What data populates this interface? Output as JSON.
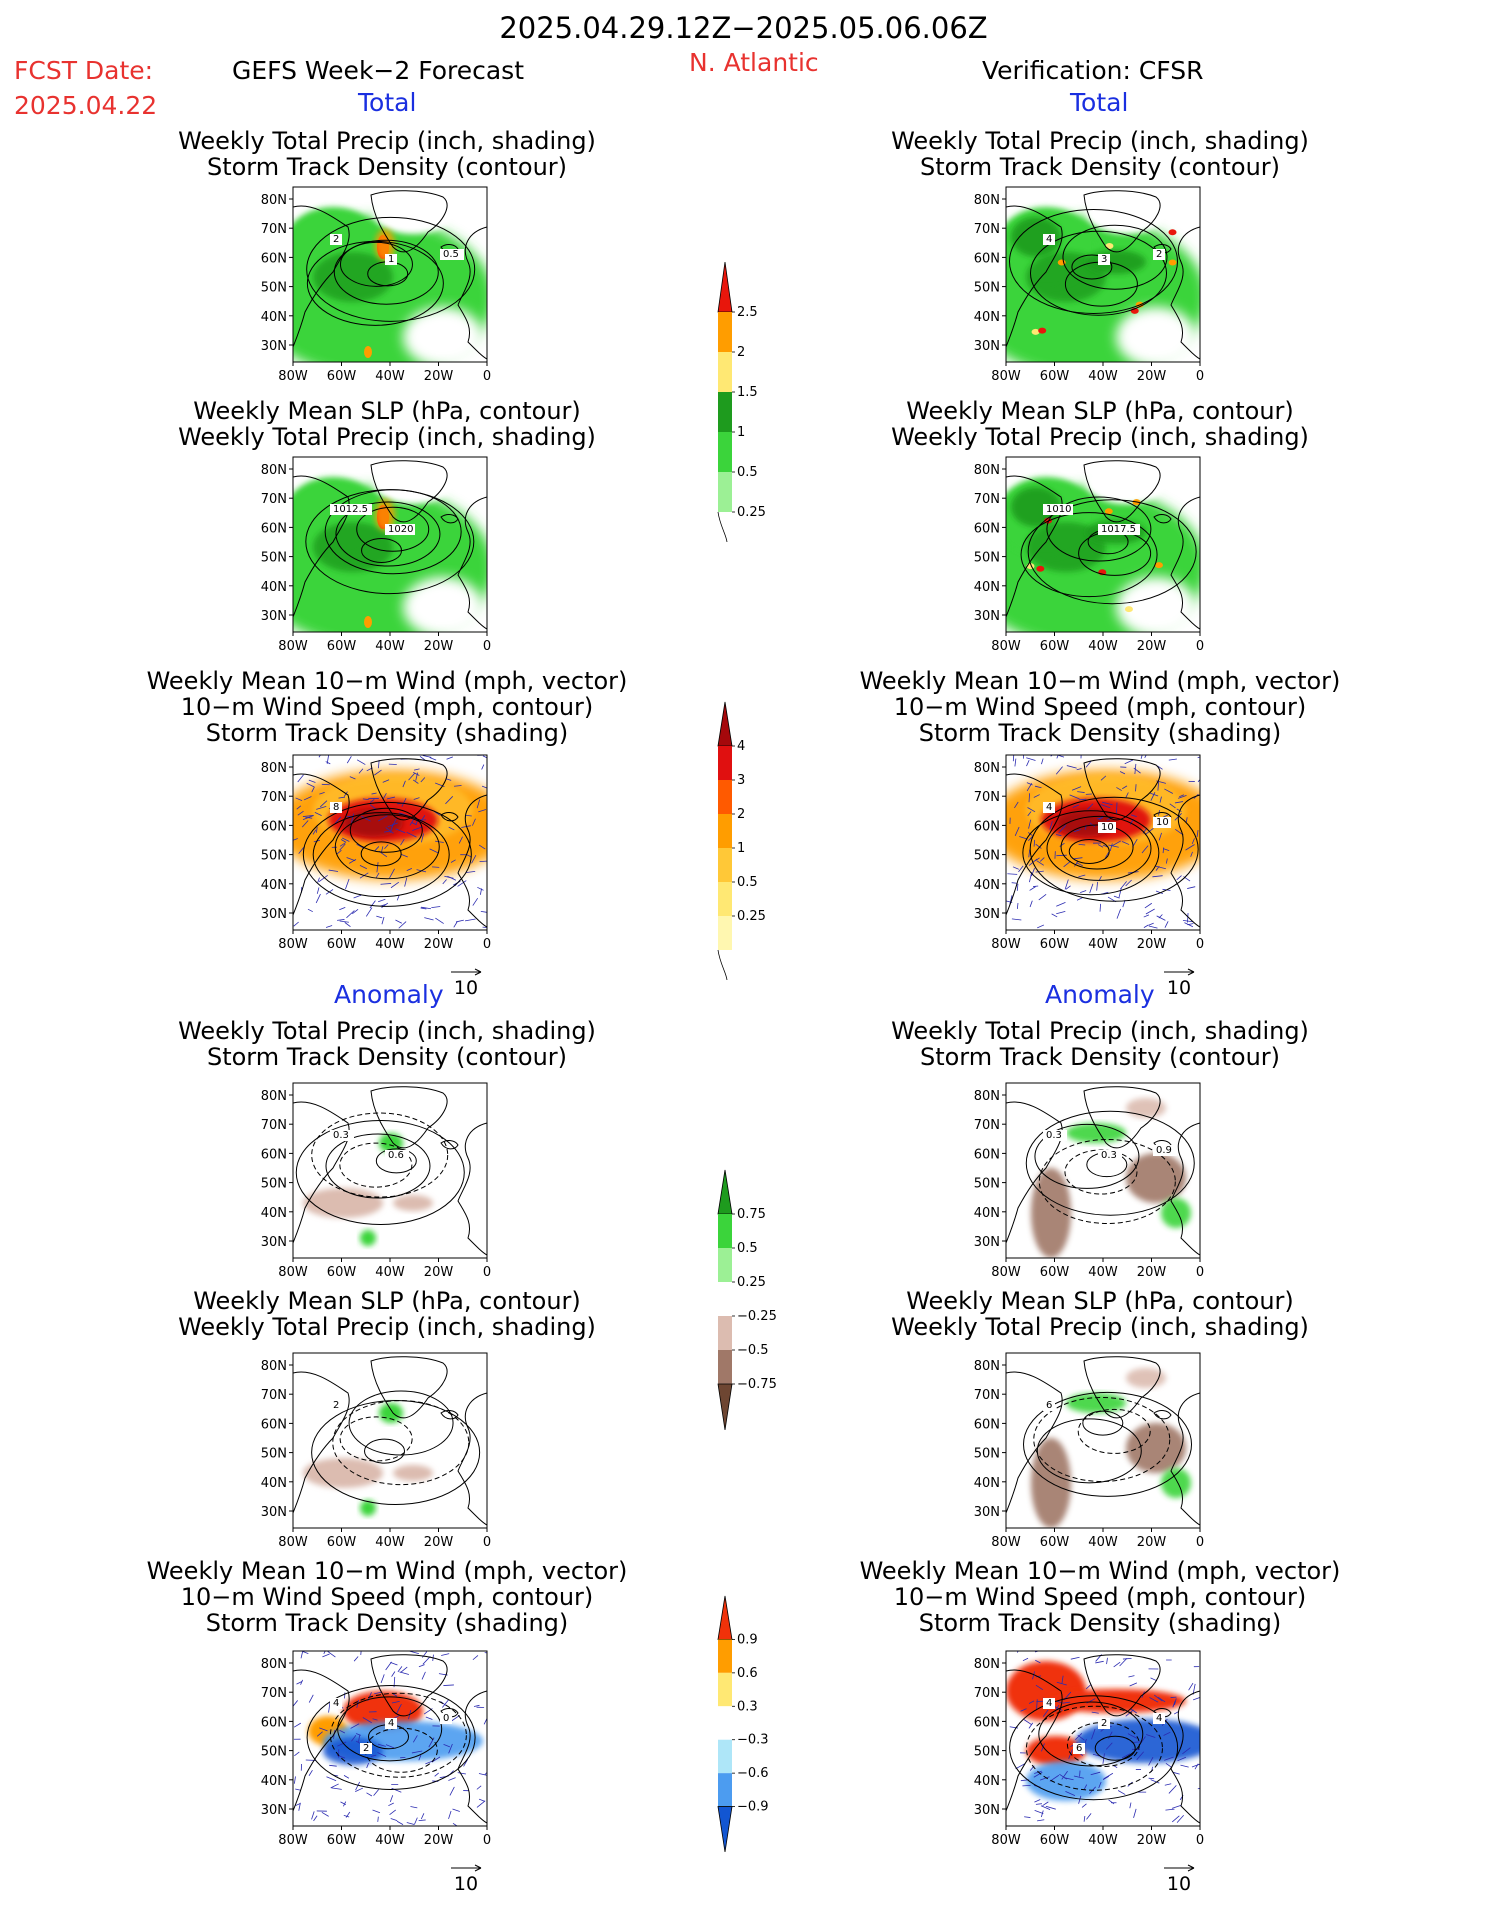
{
  "header": {
    "period": "2025.04.29.12Z−2025.05.06.06Z",
    "fcst_label": "FCST Date:",
    "fcst_date": "2025.04.22",
    "forecast_title": "GEFS Week−2 Forecast",
    "region": "N. Atlantic",
    "verification_title": "Verification: CFSR"
  },
  "sections": {
    "total_left": "Total",
    "total_right": "Total",
    "anomaly_left": "Anomaly",
    "anomaly_right": "Anomaly"
  },
  "panel_titles": {
    "precip_track": [
      "Weekly Total Precip (inch, shading)",
      "Storm Track Density (contour)"
    ],
    "slp_precip": [
      "Weekly Mean SLP (hPa, contour)",
      "Weekly Total Precip (inch, shading)"
    ],
    "wind_track": [
      "Weekly Mean 10−m Wind (mph, vector)",
      "10−m Wind Speed (mph, contour)",
      "Storm Track Density (shading)"
    ]
  },
  "axes": {
    "lat_ticks": [
      "80N",
      "70N",
      "60N",
      "50N",
      "40N",
      "30N"
    ],
    "lon_ticks": [
      "80W",
      "60W",
      "40W",
      "20W",
      "0"
    ]
  },
  "vector_reference": "10",
  "colorbars": {
    "precip_total": {
      "labels": [
        "2.5",
        "2",
        "1.5",
        "1",
        "0.5",
        "0.25"
      ],
      "colors": [
        "#e8160c",
        "#ff9d00",
        "#ffe873",
        "#1e9b1e",
        "#3bd43b",
        "#9cf095"
      ]
    },
    "track_total": {
      "labels": [
        "4",
        "3",
        "2",
        "1",
        "0.5",
        "0.25"
      ],
      "colors": [
        "#a5080b",
        "#e01010",
        "#ff5a00",
        "#ff9d00",
        "#ffc837",
        "#ffe873",
        "#fff7b0"
      ]
    },
    "precip_anom": {
      "labels": [
        "0.75",
        "0.5",
        "0.25",
        "−0.25",
        "−0.5",
        "−0.75"
      ],
      "colors": [
        "#1e9b1e",
        "#3bd43b",
        "#9cf095",
        "#ffffff",
        "#dcbcb0",
        "#a07868",
        "#6e4632"
      ]
    },
    "track_anom": {
      "labels": [
        "0.9",
        "0.6",
        "0.3",
        "−0.3",
        "−0.6",
        "−0.9"
      ],
      "colors": [
        "#f0320a",
        "#ff9d00",
        "#ffe873",
        "#ffffff",
        "#aee6f8",
        "#4c9cf0",
        "#1256d2"
      ]
    }
  },
  "panels": [
    {
      "id": "fc-total-precip",
      "labels": [
        "2",
        "1",
        "0.5"
      ]
    },
    {
      "id": "fc-total-slp",
      "labels": [
        "1012.5",
        "1020"
      ]
    },
    {
      "id": "fc-total-wind",
      "labels": [
        "8"
      ]
    },
    {
      "id": "vr-total-precip",
      "labels": [
        "4",
        "3",
        "2"
      ]
    },
    {
      "id": "vr-total-slp",
      "labels": [
        "1010",
        "1017.5"
      ]
    },
    {
      "id": "vr-total-wind",
      "labels": [
        "4",
        "10",
        "10"
      ]
    },
    {
      "id": "fc-anom-precip",
      "labels": [
        "0.3",
        "0.6"
      ]
    },
    {
      "id": "fc-anom-slp",
      "labels": [
        "2"
      ]
    },
    {
      "id": "fc-anom-wind",
      "labels": [
        "4",
        "4",
        "0",
        "2"
      ]
    },
    {
      "id": "vr-anom-precip",
      "labels": [
        "0.3",
        "0.3",
        "0.9"
      ]
    },
    {
      "id": "vr-anom-slp",
      "labels": [
        "6"
      ]
    },
    {
      "id": "vr-anom-wind",
      "labels": [
        "4",
        "2",
        "4",
        "6"
      ]
    }
  ]
}
